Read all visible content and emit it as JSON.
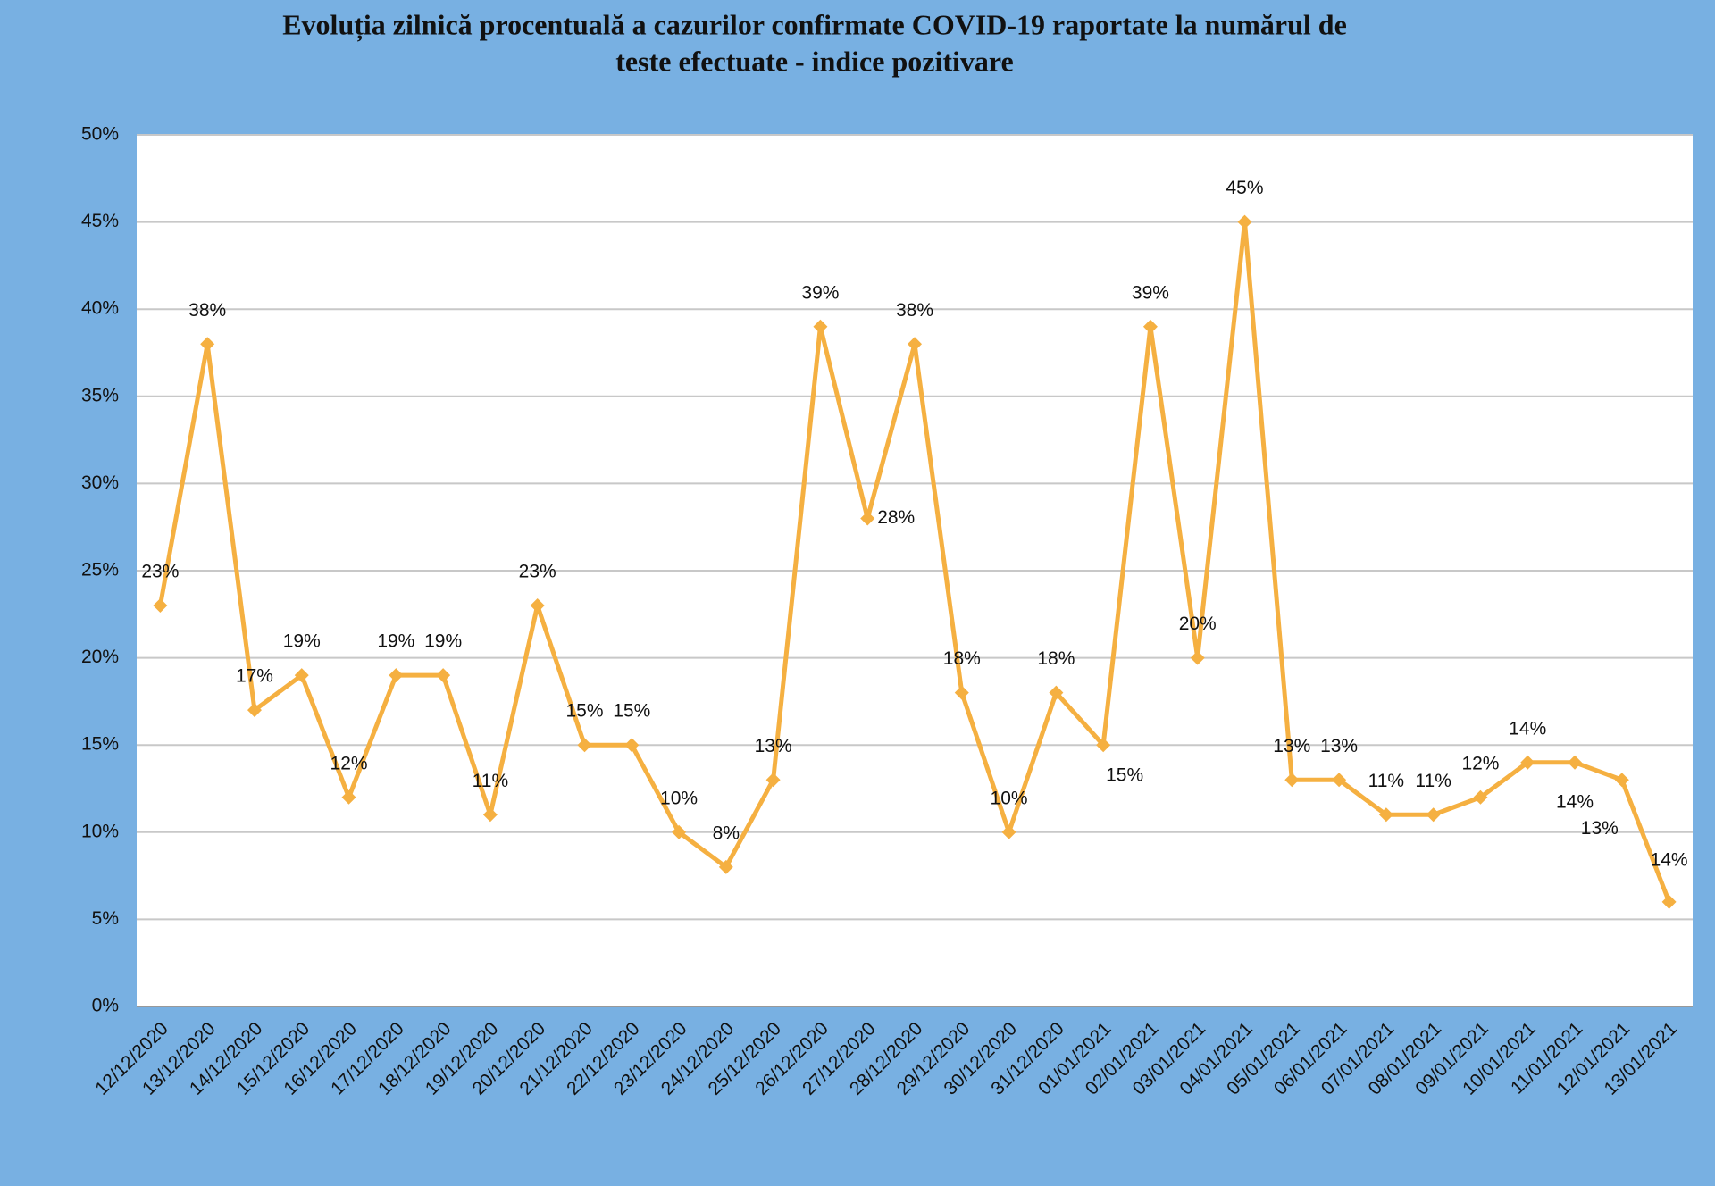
{
  "chart_data": {
    "type": "line",
    "title": [
      "Evoluția zilnică procentuală a cazurilor confirmate COVID-19 raportate la numărul de",
      "teste efectuate - indice pozitivare"
    ],
    "categories": [
      "12/12/2020",
      "13/12/2020",
      "14/12/2020",
      "15/12/2020",
      "16/12/2020",
      "17/12/2020",
      "18/12/2020",
      "19/12/2020",
      "20/12/2020",
      "21/12/2020",
      "22/12/2020",
      "23/12/2020",
      "24/12/2020",
      "25/12/2020",
      "26/12/2020",
      "27/12/2020",
      "28/12/2020",
      "29/12/2020",
      "30/12/2020",
      "31/12/2020",
      "01/01/2021",
      "02/01/2021",
      "03/01/2021",
      "04/01/2021",
      "05/01/2021",
      "06/01/2021",
      "07/01/2021",
      "08/01/2021",
      "09/01/2021",
      "10/01/2021",
      "11/01/2021",
      "12/01/2021",
      "13/01/2021"
    ],
    "values": [
      23,
      38,
      17,
      19,
      12,
      19,
      19,
      11,
      23,
      15,
      15,
      10,
      8,
      13,
      39,
      28,
      38,
      18,
      10,
      18,
      15,
      39,
      20,
      45,
      13,
      13,
      11,
      11,
      12,
      14,
      14,
      13,
      6
    ],
    "value_labels": [
      "23%",
      "38%",
      "17%",
      "19%",
      "12%",
      "19%",
      "19%",
      "11%",
      "23%",
      "15%",
      "15%",
      "10%",
      "8%",
      "13%",
      "39%",
      "28%",
      "38%",
      "18%",
      "10%",
      "18%",
      "15%",
      "39%",
      "20%",
      "45%",
      "13%",
      "13%",
      "11%",
      "11%",
      "12%",
      "14%",
      "14%",
      "13%",
      null
    ],
    "annotations": [
      "14%"
    ],
    "color": "#f5b041",
    "ylim": [
      0,
      50
    ],
    "yticks": [
      {
        "value": 0,
        "label": "0%"
      },
      {
        "value": 5,
        "label": "5%"
      },
      {
        "value": 10,
        "label": "10%"
      },
      {
        "value": 15,
        "label": "15%"
      },
      {
        "value": 20,
        "label": "20%"
      },
      {
        "value": 25,
        "label": "25%"
      },
      {
        "value": 30,
        "label": "30%"
      },
      {
        "value": 35,
        "label": "35%"
      },
      {
        "value": 40,
        "label": "40%"
      },
      {
        "value": 45,
        "label": "45%"
      },
      {
        "value": 50,
        "label": "50%"
      }
    ],
    "grid": true
  }
}
